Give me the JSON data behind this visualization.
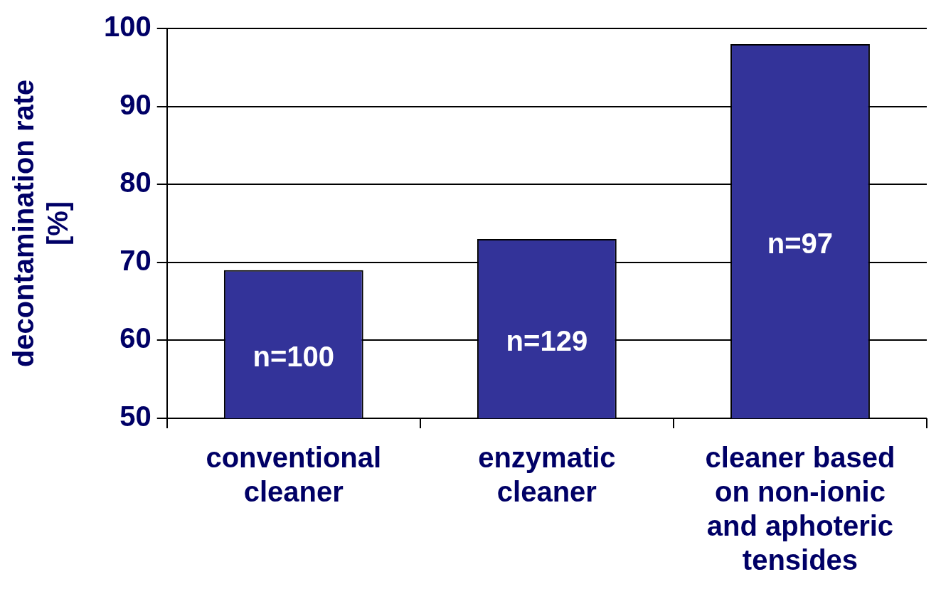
{
  "chart_data": {
    "type": "bar",
    "ylabel": "decontamination rate [%]",
    "categories": [
      "conventional cleaner",
      "enzymatic cleaner",
      "cleaner based on non-ionic and aphoteric tensides"
    ],
    "values": [
      69,
      73,
      98
    ],
    "color": "#333399",
    "ylim": [
      50,
      100
    ],
    "yticks": [
      50,
      60,
      70,
      80,
      90,
      100
    ],
    "grid": "y",
    "legend": false,
    "annotations": [
      "n=100",
      "n=129",
      "n=97"
    ]
  }
}
